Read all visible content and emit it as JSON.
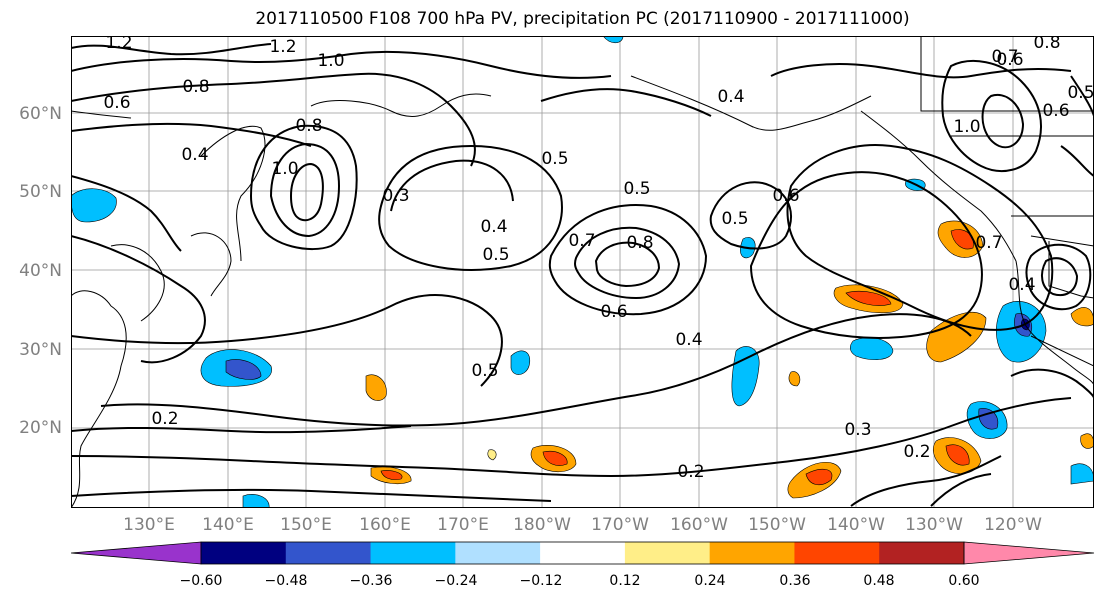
{
  "title": "2017110500 F108 700 hPa PV, precipitation PC (2017110900 - 2017111000)",
  "lat_labels": [
    "60°N",
    "50°N",
    "40°N",
    "30°N",
    "20°N"
  ],
  "lon_labels": [
    "130°E",
    "140°E",
    "150°E",
    "160°E",
    "170°E",
    "180°W",
    "170°W",
    "160°W",
    "150°W",
    "140°W",
    "130°W",
    "120°W"
  ],
  "contour_labels": [
    "1.2",
    "1.2",
    "1.0",
    "0.8",
    "0.6",
    "0.4",
    "0.8",
    "1.0",
    "0.3",
    "0.5",
    "0.5",
    "0.4",
    "0.5",
    "0.7",
    "0.8",
    "0.6",
    "0.5",
    "0.6",
    "0.4",
    "0.5",
    "0.2",
    "0.3",
    "0.2",
    "0.2",
    "0.6",
    "0.7",
    "0.8",
    "0.5",
    "1.0",
    "0.6",
    "0.4",
    "0.7",
    "0.4"
  ],
  "colorbar": {
    "colors": [
      "#9933cc",
      "#000080",
      "#3355cc",
      "#00bfff",
      "#b0e0ff",
      "#ffffff",
      "#ffee88",
      "#ffa500",
      "#ff4500",
      "#b22222",
      "#ff88aa"
    ],
    "ticks": [
      "−0.60",
      "−0.48",
      "−0.36",
      "−0.24",
      "−0.12",
      "0.12",
      "0.24",
      "0.36",
      "0.48",
      "0.60"
    ]
  }
}
